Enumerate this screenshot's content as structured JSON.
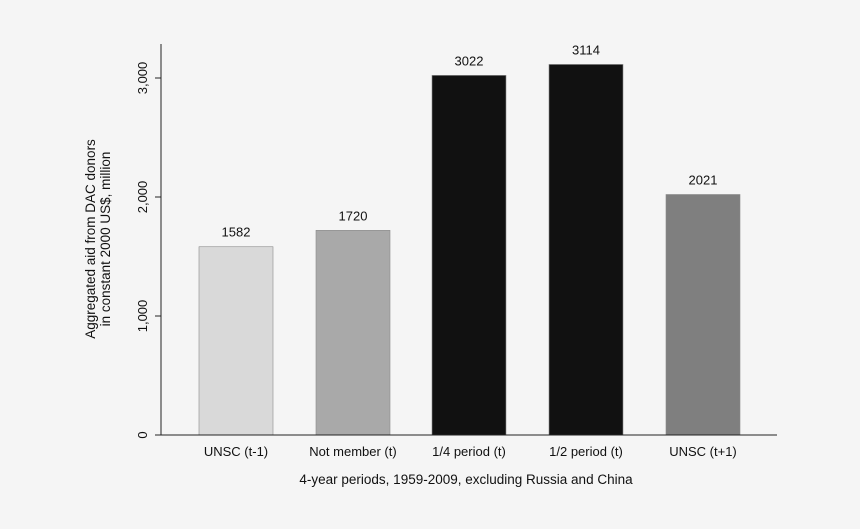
{
  "chart_data": {
    "type": "bar",
    "title": "",
    "xlabel": "4-year periods, 1959-2009, excluding Russia and China",
    "ylabel_lines": [
      "Aggregated aid from DAC donors",
      "in constant 2000 US$, million"
    ],
    "ylim": [
      0,
      3300
    ],
    "yticks": [
      0,
      1000,
      2000,
      3000
    ],
    "ytick_labels": [
      "0",
      "1,000",
      "2,000",
      "3,000"
    ],
    "grid": false,
    "legend": "none",
    "categories": [
      "UNSC (t-1)",
      "Not member (t)",
      "1/4 period (t)",
      "1/2 period (t)",
      "UNSC (t+1)"
    ],
    "values": [
      1582,
      1720,
      3022,
      3114,
      2021
    ],
    "value_labels": [
      "1582",
      "1720",
      "3022",
      "3114",
      "2021"
    ],
    "bar_colors": [
      "#d9d9d9",
      "#a9a9a9",
      "#111111",
      "#111111",
      "#7f7f7f"
    ]
  }
}
